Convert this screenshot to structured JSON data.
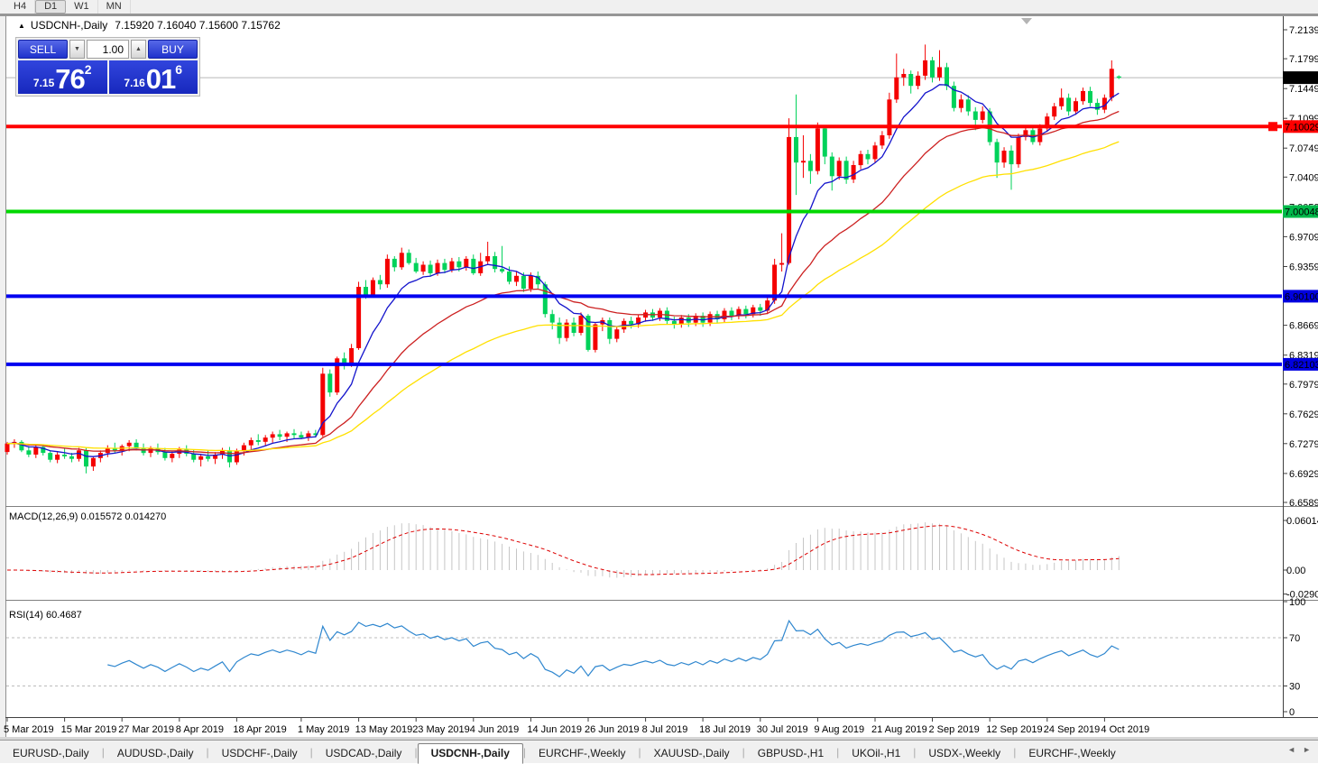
{
  "toolbar": {
    "items": [
      {
        "label": "H4",
        "active": false
      },
      {
        "label": "D1",
        "active": true
      },
      {
        "label": "W1",
        "active": false
      },
      {
        "label": "MN",
        "active": false
      }
    ]
  },
  "window": {
    "title": {
      "arrow_icon": "▲",
      "symbol": "USDCNH-,Daily",
      "ohlc": "7.15920 7.16040 7.15600 7.15762"
    }
  },
  "trade": {
    "sell_label": "SELL",
    "buy_label": "BUY",
    "volume": "1.00",
    "spinner_down_icon": "▼",
    "spinner_up_icon": "▲",
    "sell_price": {
      "prefix": "7.15",
      "big": "76",
      "sup": "2"
    },
    "buy_price": {
      "prefix": "7.16",
      "big": "01",
      "sup": "6"
    }
  },
  "macd_panel": {
    "label": "MACD(12,26,9) 0.015572 0.014270"
  },
  "rsi_panel": {
    "label": "RSI(14) 60.4687"
  },
  "date_axis": [
    {
      "i": 0,
      "label": "5 Mar 2019"
    },
    {
      "i": 8,
      "label": "15 Mar 2019"
    },
    {
      "i": 16,
      "label": "27 Mar 2019"
    },
    {
      "i": 24,
      "label": "8 Apr 2019"
    },
    {
      "i": 32,
      "label": "18 Apr 2019"
    },
    {
      "i": 41,
      "label": "1 May 2019"
    },
    {
      "i": 49,
      "label": "13 May 2019"
    },
    {
      "i": 57,
      "label": "23 May 2019"
    },
    {
      "i": 65,
      "label": "4 Jun 2019"
    },
    {
      "i": 73,
      "label": "14 Jun 2019"
    },
    {
      "i": 81,
      "label": "26 Jun 2019"
    },
    {
      "i": 89,
      "label": "8 Jul 2019"
    },
    {
      "i": 97,
      "label": "18 Jul 2019"
    },
    {
      "i": 105,
      "label": "30 Jul 2019"
    },
    {
      "i": 113,
      "label": "9 Aug 2019"
    },
    {
      "i": 121,
      "label": "21 Aug 2019"
    },
    {
      "i": 129,
      "label": "2 Sep 2019"
    },
    {
      "i": 137,
      "label": "12 Sep 2019"
    },
    {
      "i": 145,
      "label": "24 Sep 2019"
    },
    {
      "i": 153,
      "label": "4 Oct 2019"
    }
  ],
  "tabs": {
    "active_index": 4,
    "scroll_left_icon": "◄",
    "scroll_right_icon": "►",
    "items": [
      "EURUSD-,Daily",
      "AUDUSD-,Daily",
      "USDCHF-,Daily",
      "USDCAD-,Daily",
      "USDCNH-,Daily",
      "EURCHF-,Weekly",
      "XAUUSD-,Daily",
      "GBPUSD-,H1",
      "UKOil-,H1",
      "USDX-,Weekly",
      "EURCHF-,Weekly"
    ]
  },
  "chart_data": {
    "type": "candlestick",
    "symbol": "USDCNH-",
    "timeframe": "Daily",
    "ohlc_current": {
      "open": 7.1592,
      "high": 7.1604,
      "low": 7.156,
      "close": 7.15762
    },
    "ylim": [
      6.6557,
      7.2298
    ],
    "y_ticks": [
      "7.21390",
      "7.17990",
      "7.14490",
      "7.10990",
      "7.07490",
      "7.04090",
      "7.00590",
      "6.97090",
      "6.93590",
      "6.90090",
      "6.86690",
      "6.83190",
      "6.79790",
      "6.76290",
      "6.72790",
      "6.69290",
      "6.65890"
    ],
    "colors": {
      "up": "#f40000",
      "down": "#00d25a",
      "background": "#ffffff"
    },
    "current_price": {
      "value": 7.15762,
      "label": "7.15762",
      "line_color": "#b8b8b8",
      "badge_color": "#000000"
    },
    "hlines": [
      {
        "price": 7.10029,
        "label": "7.10029",
        "color": "#ff0000",
        "handle": true
      },
      {
        "price": 7.00048,
        "label": "7.00048",
        "color": "#00d800",
        "handle": false
      },
      {
        "price": 6.901,
        "label": "6.90100",
        "color": "#0000f0",
        "handle": false
      },
      {
        "price": 6.82103,
        "label": "6.82103",
        "color": "#0000f0",
        "handle": false
      }
    ],
    "badges": [
      {
        "label": "7.15762",
        "price": 7.15762,
        "color": "#000000"
      },
      {
        "label": "7.10029",
        "price": 7.10029,
        "color": "#ff0000"
      },
      {
        "label": "7.00048",
        "price": 7.00048,
        "color": "#00b84a"
      },
      {
        "label": "6.90100",
        "price": 6.901,
        "color": "#0000e0"
      },
      {
        "label": "6.82103",
        "price": 6.82103,
        "color": "#0000e0"
      }
    ],
    "moving_averages": [
      {
        "period": 8,
        "color": "#1414cc"
      },
      {
        "period": 24,
        "color": "#cc2020"
      },
      {
        "period": 48,
        "color": "#ffe000"
      }
    ],
    "macd": {
      "fast": 12,
      "slow": 26,
      "signal": 9,
      "value": "0.015572",
      "signal_value": "0.014270",
      "y_ticks": [
        "0.060146",
        "0.00",
        "-0.029064"
      ],
      "hist_color": "#c6c6c6",
      "signal_color": "#dd0000"
    },
    "rsi": {
      "period": 14,
      "value": "60.4687",
      "levels": [
        70,
        30
      ],
      "y_ticks": [
        "100",
        "70",
        "30",
        "0"
      ],
      "color": "#2f87cf",
      "level_color": "#bbbbbb"
    },
    "candles": [
      [
        6.718,
        6.73,
        6.715,
        6.728
      ],
      [
        6.728,
        6.733,
        6.723,
        6.73
      ],
      [
        6.73,
        6.732,
        6.718,
        6.72
      ],
      [
        6.72,
        6.725,
        6.712,
        6.715
      ],
      [
        6.715,
        6.726,
        6.711,
        6.724
      ],
      [
        6.724,
        6.727,
        6.714,
        6.717
      ],
      [
        6.717,
        6.72,
        6.706,
        6.709
      ],
      [
        6.709,
        6.718,
        6.705,
        6.715
      ],
      [
        6.715,
        6.722,
        6.71,
        6.713
      ],
      [
        6.713,
        6.717,
        6.706,
        6.71
      ],
      [
        6.71,
        6.723,
        6.707,
        6.72
      ],
      [
        6.72,
        6.723,
        6.693,
        6.701
      ],
      [
        6.701,
        6.713,
        6.696,
        6.711
      ],
      [
        6.711,
        6.72,
        6.706,
        6.717
      ],
      [
        6.717,
        6.726,
        6.712,
        6.723
      ],
      [
        6.723,
        6.729,
        6.717,
        6.72
      ],
      [
        6.72,
        6.727,
        6.714,
        6.725
      ],
      [
        6.725,
        6.732,
        6.719,
        6.729
      ],
      [
        6.729,
        6.733,
        6.72,
        6.723
      ],
      [
        6.723,
        6.728,
        6.714,
        6.717
      ],
      [
        6.717,
        6.725,
        6.712,
        6.722
      ],
      [
        6.722,
        6.728,
        6.715,
        6.718
      ],
      [
        6.718,
        6.723,
        6.708,
        6.711
      ],
      [
        6.711,
        6.719,
        6.706,
        6.716
      ],
      [
        6.716,
        6.724,
        6.711,
        6.721
      ],
      [
        6.721,
        6.726,
        6.713,
        6.716
      ],
      [
        6.716,
        6.721,
        6.706,
        6.709
      ],
      [
        6.709,
        6.716,
        6.701,
        6.713
      ],
      [
        6.713,
        6.72,
        6.707,
        6.71
      ],
      [
        6.71,
        6.718,
        6.704,
        6.715
      ],
      [
        6.715,
        6.723,
        6.71,
        6.72
      ],
      [
        6.72,
        6.724,
        6.7,
        6.706
      ],
      [
        6.706,
        6.722,
        6.703,
        6.719
      ],
      [
        6.719,
        6.729,
        6.714,
        6.726
      ],
      [
        6.726,
        6.735,
        6.721,
        6.732
      ],
      [
        6.732,
        6.739,
        6.726,
        6.73
      ],
      [
        6.73,
        6.738,
        6.725,
        6.735
      ],
      [
        6.735,
        6.742,
        6.729,
        6.739
      ],
      [
        6.739,
        6.744,
        6.732,
        6.736
      ],
      [
        6.736,
        6.742,
        6.73,
        6.74
      ],
      [
        6.74,
        6.745,
        6.734,
        6.738
      ],
      [
        6.738,
        6.742,
        6.733,
        6.735
      ],
      [
        6.735,
        6.743,
        6.731,
        6.74
      ],
      [
        6.74,
        6.744,
        6.735,
        6.738
      ],
      [
        6.738,
        6.817,
        6.736,
        6.81
      ],
      [
        6.81,
        6.815,
        6.783,
        6.788
      ],
      [
        6.788,
        6.83,
        6.785,
        6.828
      ],
      [
        6.828,
        6.835,
        6.815,
        6.822
      ],
      [
        6.822,
        6.845,
        6.818,
        6.84
      ],
      [
        6.84,
        6.918,
        6.838,
        6.912
      ],
      [
        6.912,
        6.92,
        6.898,
        6.903
      ],
      [
        6.903,
        6.923,
        6.9,
        6.92
      ],
      [
        6.92,
        6.926,
        6.909,
        6.915
      ],
      [
        6.915,
        6.95,
        6.911,
        6.945
      ],
      [
        6.945,
        6.948,
        6.93,
        6.935
      ],
      [
        6.935,
        6.958,
        6.932,
        6.952
      ],
      [
        6.952,
        6.956,
        6.938,
        6.94
      ],
      [
        6.94,
        6.946,
        6.928,
        6.93
      ],
      [
        6.93,
        6.942,
        6.926,
        6.938
      ],
      [
        6.938,
        6.943,
        6.924,
        6.928
      ],
      [
        6.928,
        6.944,
        6.925,
        6.94
      ],
      [
        6.94,
        6.945,
        6.928,
        6.932
      ],
      [
        6.932,
        6.946,
        6.929,
        6.942
      ],
      [
        6.942,
        6.947,
        6.93,
        6.935
      ],
      [
        6.935,
        6.948,
        6.931,
        6.945
      ],
      [
        6.945,
        6.95,
        6.926,
        6.928
      ],
      [
        6.928,
        6.952,
        6.925,
        6.942
      ],
      [
        6.942,
        6.965,
        6.938,
        6.948
      ],
      [
        6.948,
        6.953,
        6.929,
        6.933
      ],
      [
        6.933,
        6.96,
        6.928,
        6.93
      ],
      [
        6.93,
        6.936,
        6.915,
        6.918
      ],
      [
        6.918,
        6.93,
        6.913,
        6.925
      ],
      [
        6.925,
        6.929,
        6.906,
        6.91
      ],
      [
        6.91,
        6.929,
        6.906,
        6.925
      ],
      [
        6.925,
        6.93,
        6.91,
        6.915
      ],
      [
        6.915,
        6.918,
        6.876,
        6.88
      ],
      [
        6.88,
        6.885,
        6.862,
        6.87
      ],
      [
        6.87,
        6.876,
        6.845,
        6.852
      ],
      [
        6.852,
        6.874,
        6.848,
        6.87
      ],
      [
        6.87,
        6.876,
        6.854,
        6.858
      ],
      [
        6.858,
        6.882,
        6.855,
        6.878
      ],
      [
        6.878,
        6.88,
        6.836,
        6.838
      ],
      [
        6.838,
        6.87,
        6.835,
        6.868
      ],
      [
        6.868,
        6.876,
        6.86,
        6.873
      ],
      [
        6.873,
        6.876,
        6.845,
        6.851
      ],
      [
        6.851,
        6.866,
        6.847,
        6.862
      ],
      [
        6.862,
        6.875,
        6.858,
        6.872
      ],
      [
        6.872,
        6.877,
        6.863,
        6.868
      ],
      [
        6.868,
        6.879,
        6.864,
        6.876
      ],
      [
        6.876,
        6.885,
        6.871,
        6.882
      ],
      [
        6.882,
        6.886,
        6.872,
        6.876
      ],
      [
        6.876,
        6.887,
        6.872,
        6.884
      ],
      [
        6.884,
        6.888,
        6.868,
        6.872
      ],
      [
        6.872,
        6.877,
        6.863,
        6.868
      ],
      [
        6.868,
        6.879,
        6.864,
        6.876
      ],
      [
        6.876,
        6.88,
        6.865,
        6.87
      ],
      [
        6.87,
        6.881,
        6.866,
        6.878
      ],
      [
        6.878,
        6.882,
        6.865,
        6.87
      ],
      [
        6.87,
        6.883,
        6.866,
        6.88
      ],
      [
        6.88,
        6.884,
        6.869,
        6.874
      ],
      [
        6.874,
        6.887,
        6.87,
        6.884
      ],
      [
        6.884,
        6.888,
        6.873,
        6.878
      ],
      [
        6.878,
        6.889,
        6.874,
        6.886
      ],
      [
        6.886,
        6.89,
        6.875,
        6.88
      ],
      [
        6.88,
        6.891,
        6.876,
        6.888
      ],
      [
        6.888,
        6.892,
        6.878,
        6.884
      ],
      [
        6.884,
        6.902,
        6.88,
        6.896
      ],
      [
        6.896,
        6.945,
        6.892,
        6.938
      ],
      [
        6.938,
        6.975,
        6.93,
        6.94
      ],
      [
        6.94,
        7.11,
        6.938,
        7.088
      ],
      [
        7.088,
        7.138,
        7.02,
        7.058
      ],
      [
        7.058,
        7.09,
        7.04,
        7.06
      ],
      [
        7.06,
        7.068,
        7.033,
        7.048
      ],
      [
        7.048,
        7.105,
        7.044,
        7.098
      ],
      [
        7.098,
        7.102,
        7.056,
        7.065
      ],
      [
        7.065,
        7.07,
        7.025,
        7.042
      ],
      [
        7.042,
        7.064,
        7.038,
        7.06
      ],
      [
        7.06,
        7.065,
        7.033,
        7.038
      ],
      [
        7.038,
        7.06,
        7.034,
        7.055
      ],
      [
        7.055,
        7.072,
        7.05,
        7.068
      ],
      [
        7.068,
        7.073,
        7.056,
        7.062
      ],
      [
        7.062,
        7.082,
        7.058,
        7.078
      ],
      [
        7.078,
        7.095,
        7.074,
        7.09
      ],
      [
        7.09,
        7.14,
        7.086,
        7.132
      ],
      [
        7.132,
        7.186,
        7.128,
        7.158
      ],
      [
        7.158,
        7.168,
        7.148,
        7.162
      ],
      [
        7.162,
        7.166,
        7.139,
        7.148
      ],
      [
        7.148,
        7.165,
        7.144,
        7.16
      ],
      [
        7.16,
        7.1965,
        7.155,
        7.178
      ],
      [
        7.178,
        7.182,
        7.152,
        7.158
      ],
      [
        7.158,
        7.19,
        7.154,
        7.17
      ],
      [
        7.17,
        7.175,
        7.143,
        7.148
      ],
      [
        7.148,
        7.153,
        7.118,
        7.122
      ],
      [
        7.122,
        7.138,
        7.117,
        7.132
      ],
      [
        7.132,
        7.137,
        7.113,
        7.118
      ],
      [
        7.118,
        7.123,
        7.096,
        7.108
      ],
      [
        7.108,
        7.124,
        7.104,
        7.118
      ],
      [
        7.118,
        7.122,
        7.078,
        7.082
      ],
      [
        7.082,
        7.086,
        7.04,
        7.058
      ],
      [
        7.058,
        7.076,
        7.052,
        7.072
      ],
      [
        7.072,
        7.078,
        7.026,
        7.056
      ],
      [
        7.056,
        7.092,
        7.052,
        7.088
      ],
      [
        7.088,
        7.1,
        7.084,
        7.096
      ],
      [
        7.096,
        7.101,
        7.079,
        7.082
      ],
      [
        7.082,
        7.103,
        7.078,
        7.098
      ],
      [
        7.098,
        7.116,
        7.094,
        7.112
      ],
      [
        7.112,
        7.128,
        7.108,
        7.124
      ],
      [
        7.124,
        7.145,
        7.12,
        7.134
      ],
      [
        7.134,
        7.139,
        7.113,
        7.118
      ],
      [
        7.118,
        7.134,
        7.114,
        7.13
      ],
      [
        7.13,
        7.146,
        7.126,
        7.142
      ],
      [
        7.142,
        7.147,
        7.124,
        7.128
      ],
      [
        7.128,
        7.133,
        7.114,
        7.12
      ],
      [
        7.12,
        7.138,
        7.116,
        7.134
      ],
      [
        7.134,
        7.178,
        7.13,
        7.168
      ],
      [
        7.1592,
        7.1604,
        7.156,
        7.1576
      ]
    ]
  }
}
